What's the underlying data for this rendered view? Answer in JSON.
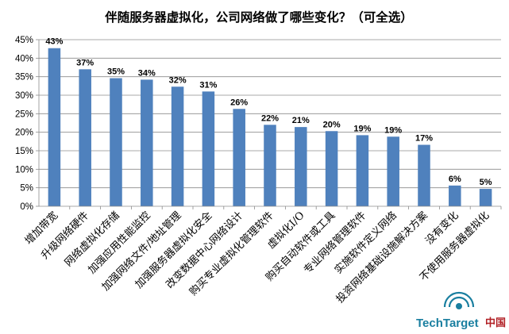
{
  "brand": {
    "name": "TechTarget",
    "region_label": "中国",
    "primary_color": "#1a7fa0",
    "accent_color": "#b11f24"
  },
  "chart_data": {
    "type": "bar",
    "title": "伴随服务器虚拟化，公司网络做了哪些变化？（可全选）",
    "xlabel": "",
    "ylabel": "",
    "ylim": [
      0,
      45
    ],
    "yticks": [
      "0%",
      "5%",
      "10%",
      "15%",
      "20%",
      "25%",
      "30%",
      "35%",
      "40%",
      "45%"
    ],
    "grid": true,
    "bar_color": "#4f81bd",
    "categories": [
      "增加带宽",
      "升级网络硬件",
      "网络虚拟化存储",
      "加强应用性能监控",
      "加强网络文件/地址管理",
      "加强服务器虚拟化安全",
      "改变数据中心网络设计",
      "购买专业虚拟化管理软件",
      "虚拟化I/O",
      "购买自动软件或工具",
      "专业网络管理软件",
      "实施软件定义网络",
      "投资网络基础设施解决方案",
      "没有变化",
      "不使用服务器虚拟化"
    ],
    "values": [
      43,
      37,
      35,
      34,
      32,
      31,
      26,
      22,
      21,
      20,
      19,
      19,
      17,
      6,
      5
    ],
    "value_labels": [
      "43%",
      "37%",
      "35%",
      "34%",
      "32%",
      "31%",
      "26%",
      "22%",
      "21%",
      "20%",
      "19%",
      "19%",
      "17%",
      "6%",
      "5%"
    ],
    "precise_values": [
      42.7,
      37.0,
      34.6,
      34.2,
      32.3,
      31.0,
      26.3,
      22.0,
      21.4,
      20.3,
      19.2,
      18.8,
      16.6,
      5.6,
      4.7
    ]
  }
}
